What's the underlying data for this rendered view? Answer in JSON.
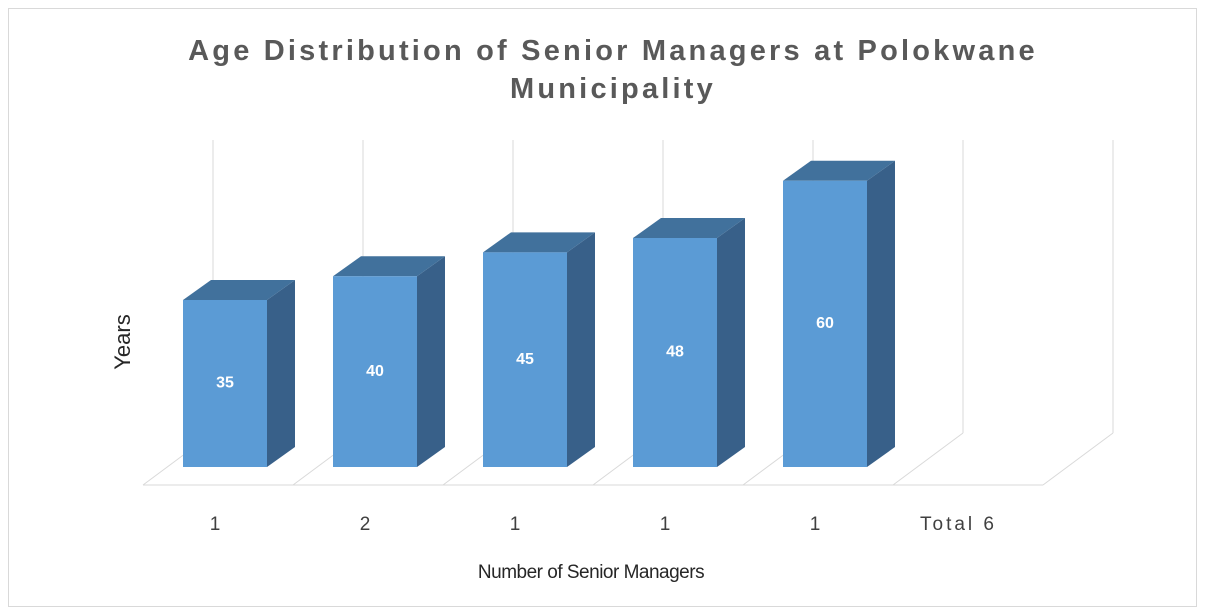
{
  "chart_data": {
    "type": "bar3d",
    "title": "Age Distribution of Senior Managers at Polokwane Municipality",
    "x_label": "Number of Senior Managers",
    "y_label": "Years",
    "categories": [
      "1",
      "2",
      "1",
      "1",
      "1",
      "Total 6"
    ],
    "values": [
      35,
      40,
      45,
      48,
      60,
      null
    ],
    "color": "#5b9bd5",
    "grid": true
  }
}
